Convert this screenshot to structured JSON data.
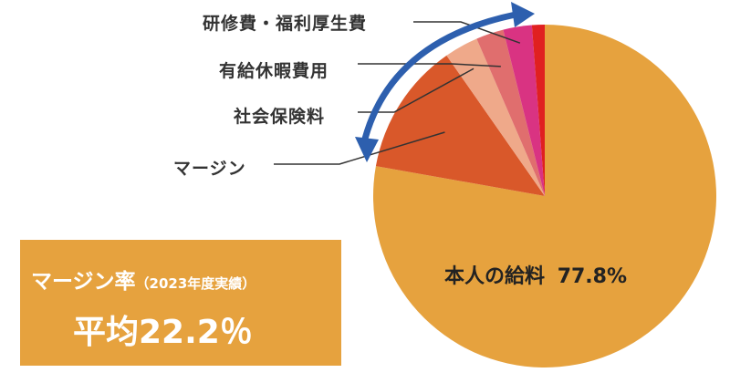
{
  "chart_data": {
    "type": "pie",
    "slices": [
      {
        "label": "本人の給料",
        "value": 77.8,
        "color": "#E6A23E"
      },
      {
        "label": "マージン",
        "value": 12.5,
        "color": "#D9582A"
      },
      {
        "label": "社会保険料",
        "value": 3.2,
        "color": "#EFA98A"
      },
      {
        "label": "有給休暇費用",
        "value": 2.6,
        "color": "#E06E6E"
      },
      {
        "label": "研修費・福利厚生費",
        "value": 2.7,
        "color": "#D93382"
      },
      {
        "label": "",
        "value": 1.2,
        "color": "#E02020"
      }
    ],
    "main_label_name": "本人の給料",
    "main_label_value": "77.8%"
  },
  "labels": {
    "training": "研修費・福利厚生費",
    "paid_leave": "有給休暇費用",
    "social_insurance": "社会保険料",
    "margin": "マージン"
  },
  "summary": {
    "title": "マージン率",
    "note": "（2023年度実績）",
    "average": "平均22.2％"
  },
  "colors": {
    "arrow": "#2D5FAE",
    "box": "#E6A23E",
    "leader": "#333333"
  }
}
